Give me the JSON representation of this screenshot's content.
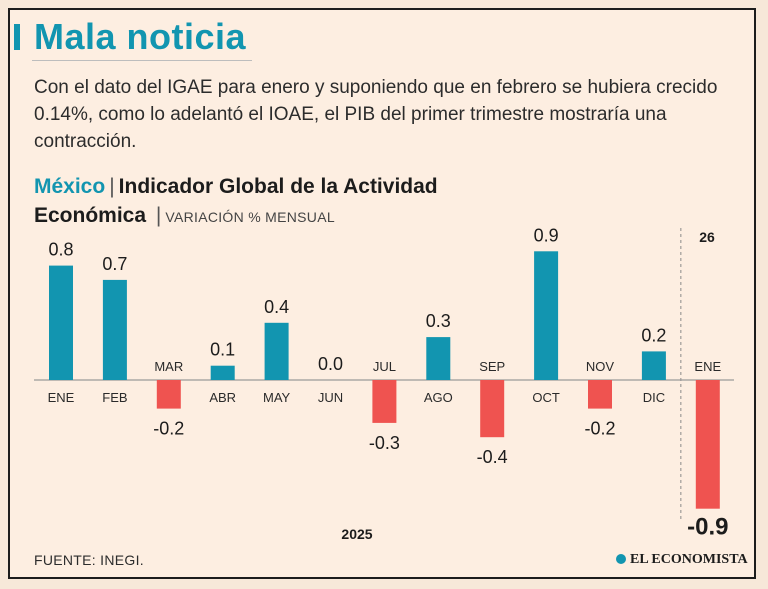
{
  "headline": "Mala noticia",
  "intro": "Con el dato del IGAE para enero y suponiendo que en febrero se hubiera crecido 0.14%, como lo adelantó el IOAE, el PIB del primer trimestre mostraría una contracción.",
  "chart_title": {
    "country": "México",
    "separator": "|",
    "main": "Indicador Global de la Actividad Económica",
    "subtitle": "VARIACIÓN % MENSUAL"
  },
  "source": "FUENTE: INEGI.",
  "brand": "EL ECONOMISTA",
  "colors": {
    "positive": "#1295b0",
    "negative": "#ef5350",
    "headline": "#1295b0",
    "background": "#fdeee1"
  },
  "chart_data": {
    "type": "bar",
    "title": "México | Indicador Global de la Actividad Económica",
    "subtitle": "VARIACIÓN % MENSUAL",
    "categories": [
      "ENE",
      "FEB",
      "MAR",
      "ABR",
      "MAY",
      "JUN",
      "JUL",
      "AGO",
      "SEP",
      "OCT",
      "NOV",
      "DIC",
      "ENE"
    ],
    "values": [
      0.8,
      0.7,
      -0.2,
      0.1,
      0.4,
      0.0,
      -0.3,
      0.3,
      -0.4,
      0.9,
      -0.2,
      0.2,
      -0.9
    ],
    "value_labels": [
      "0.8",
      "0.7",
      "-0.2",
      "0.1",
      "0.4",
      "0.0",
      "-0.3",
      "0.3",
      "-0.4",
      "0.9",
      "-0.2",
      "0.2",
      "-0.9"
    ],
    "year_labels": [
      "2025",
      "26"
    ],
    "highlight_index": 12,
    "ylim": [
      -0.9,
      0.9
    ],
    "xlabel": "",
    "ylabel": ""
  }
}
